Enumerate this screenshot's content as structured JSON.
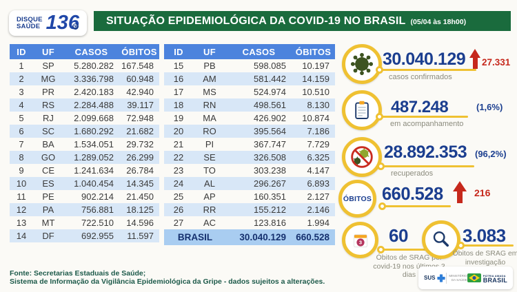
{
  "header": {
    "logo": {
      "line1": "DISQUE",
      "line2": "SAÚDE",
      "number": "136"
    },
    "title": "SITUAÇÃO EPIDEMIOLÓGICA DA COVID-19 NO BRASIL",
    "timestamp": "(05/04 às 18h00)"
  },
  "tables": {
    "columns": [
      "ID",
      "UF",
      "CASOS",
      "ÓBITOS"
    ],
    "left_rows": [
      [
        "1",
        "SP",
        "5.280.282",
        "167.548"
      ],
      [
        "2",
        "MG",
        "3.336.798",
        "60.948"
      ],
      [
        "3",
        "PR",
        "2.420.183",
        "42.940"
      ],
      [
        "4",
        "RS",
        "2.284.488",
        "39.117"
      ],
      [
        "5",
        "RJ",
        "2.099.668",
        "72.948"
      ],
      [
        "6",
        "SC",
        "1.680.292",
        "21.682"
      ],
      [
        "7",
        "BA",
        "1.534.051",
        "29.732"
      ],
      [
        "8",
        "GO",
        "1.289.052",
        "26.299"
      ],
      [
        "9",
        "CE",
        "1.241.634",
        "26.784"
      ],
      [
        "10",
        "ES",
        "1.040.454",
        "14.345"
      ],
      [
        "11",
        "PE",
        "902.214",
        "21.450"
      ],
      [
        "12",
        "PA",
        "756.881",
        "18.125"
      ],
      [
        "13",
        "MT",
        "722.510",
        "14.596"
      ],
      [
        "14",
        "DF",
        "692.955",
        "11.597"
      ]
    ],
    "right_rows": [
      [
        "15",
        "PB",
        "598.085",
        "10.197"
      ],
      [
        "16",
        "AM",
        "581.442",
        "14.159"
      ],
      [
        "17",
        "MS",
        "524.974",
        "10.510"
      ],
      [
        "18",
        "RN",
        "498.561",
        "8.130"
      ],
      [
        "19",
        "MA",
        "426.902",
        "10.874"
      ],
      [
        "20",
        "RO",
        "395.564",
        "7.186"
      ],
      [
        "21",
        "PI",
        "367.747",
        "7.729"
      ],
      [
        "22",
        "SE",
        "326.508",
        "6.325"
      ],
      [
        "23",
        "TO",
        "303.238",
        "4.147"
      ],
      [
        "24",
        "AL",
        "296.267",
        "6.893"
      ],
      [
        "25",
        "AP",
        "160.351",
        "2.127"
      ],
      [
        "26",
        "RR",
        "155.212",
        "2.146"
      ],
      [
        "27",
        "AC",
        "123.816",
        "1.994"
      ]
    ],
    "total_row": {
      "label": "BRASIL",
      "casos": "30.040.129",
      "obitos": "660.528"
    }
  },
  "stats": {
    "confirmed": {
      "value": "30.040.129",
      "delta": "27.331",
      "label": "casos confirmados"
    },
    "followup": {
      "value": "487.248",
      "pct": "(1,6%)",
      "label": "em acompanhamento"
    },
    "recovered": {
      "value": "28.892.353",
      "pct": "(96,2%)",
      "label": "recuperados"
    },
    "deaths": {
      "badge": "ÓBITOS",
      "value": "660.528",
      "delta": "216"
    },
    "srag_deaths": {
      "value": "60",
      "label": "Óbitos de SRAG por covid-19 nos últimos 3 dias"
    },
    "srag_investigation": {
      "value": "3.083",
      "label": "Óbitos de SRAG em investigação"
    }
  },
  "footer": {
    "line1": "Fonte: Secretarias Estaduais de Saúde;",
    "line2": "Sistema de Informação da Vigilância Epidemiológica da Gripe - dados sujeitos a alterações.",
    "logos": {
      "sus": "SUS",
      "ministry": "Ministério da Saúde",
      "brasil_pre": "PÁTRIA AMADA",
      "brasil": "BRASIL"
    }
  },
  "colors": {
    "bar_green": "#1a6b3d",
    "table_header_blue": "#4c83dd",
    "stripe_blue": "#d8e7f7",
    "total_row_blue": "#a9cdf1",
    "number_navy": "#1b3e8f",
    "alert_red": "#c6281c",
    "accent_yellow": "#efc132",
    "label_gray": "#8b8b7d",
    "footer_green": "#1d5a4a"
  },
  "chart_data": {
    "type": "table",
    "title": "Situação epidemiológica da COVID-19 no Brasil",
    "as_of": "05/04 às 18h00",
    "columns": [
      "ID",
      "UF",
      "CASOS",
      "ÓBITOS"
    ],
    "rows": [
      [
        1,
        "SP",
        5280282,
        167548
      ],
      [
        2,
        "MG",
        3336798,
        60948
      ],
      [
        3,
        "PR",
        2420183,
        42940
      ],
      [
        4,
        "RS",
        2284488,
        39117
      ],
      [
        5,
        "RJ",
        2099668,
        72948
      ],
      [
        6,
        "SC",
        1680292,
        21682
      ],
      [
        7,
        "BA",
        1534051,
        29732
      ],
      [
        8,
        "GO",
        1289052,
        26299
      ],
      [
        9,
        "CE",
        1241634,
        26784
      ],
      [
        10,
        "ES",
        1040454,
        14345
      ],
      [
        11,
        "PE",
        902214,
        21450
      ],
      [
        12,
        "PA",
        756881,
        18125
      ],
      [
        13,
        "MT",
        722510,
        14596
      ],
      [
        14,
        "DF",
        692955,
        11597
      ],
      [
        15,
        "PB",
        598085,
        10197
      ],
      [
        16,
        "AM",
        581442,
        14159
      ],
      [
        17,
        "MS",
        524974,
        10510
      ],
      [
        18,
        "RN",
        498561,
        8130
      ],
      [
        19,
        "MA",
        426902,
        10874
      ],
      [
        20,
        "RO",
        395564,
        7186
      ],
      [
        21,
        "PI",
        367747,
        7729
      ],
      [
        22,
        "SE",
        326508,
        6325
      ],
      [
        23,
        "TO",
        303238,
        4147
      ],
      [
        24,
        "AL",
        296267,
        6893
      ],
      [
        25,
        "AP",
        160351,
        2127
      ],
      [
        26,
        "RR",
        155212,
        2146
      ],
      [
        27,
        "AC",
        123816,
        1994
      ]
    ],
    "total": {
      "uf": "BRASIL",
      "casos": 30040129,
      "obitos": 660528
    },
    "summary": {
      "casos_confirmados": 30040129,
      "novos_casos": 27331,
      "em_acompanhamento": 487248,
      "em_acompanhamento_pct": 1.6,
      "recuperados": 28892353,
      "recuperados_pct": 96.2,
      "obitos": 660528,
      "novos_obitos": 216,
      "obitos_srag_covid_3dias": 60,
      "obitos_srag_investigacao": 3083
    }
  }
}
